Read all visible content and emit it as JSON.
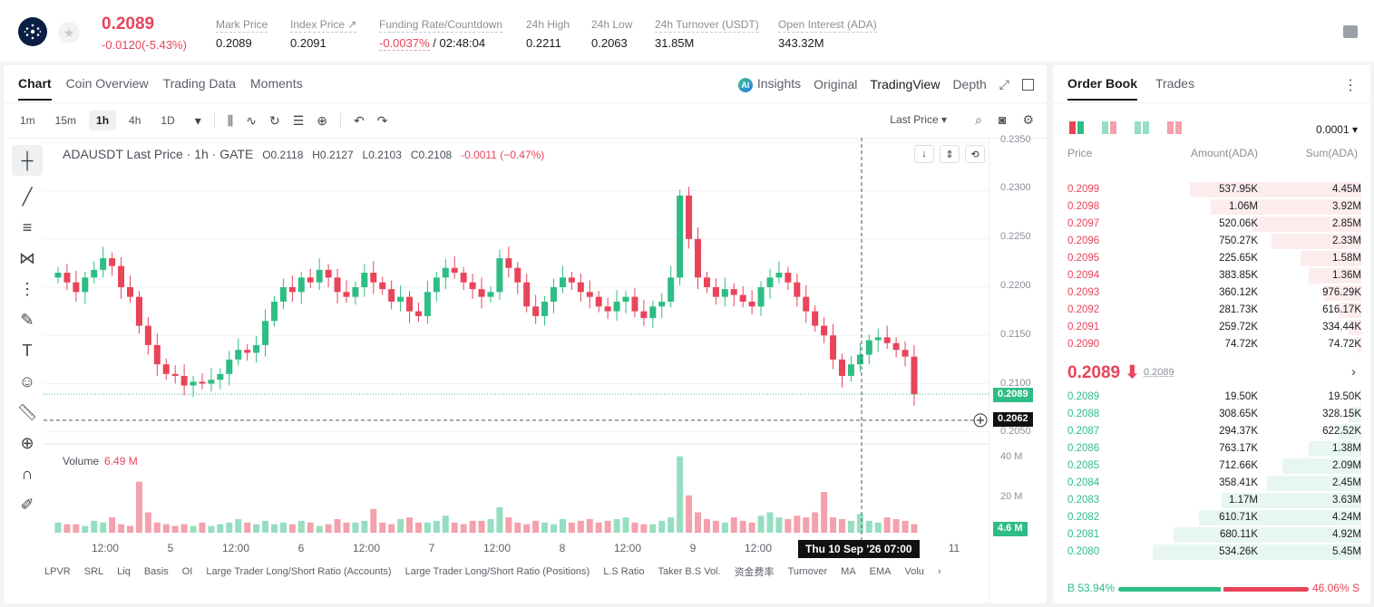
{
  "header": {
    "last_price": "0.2089",
    "change": "-0.0120(-5.43%)",
    "stats": [
      {
        "label": "Mark Price",
        "value": "0.2089"
      },
      {
        "label": "Index Price ↗",
        "value": "0.2091"
      },
      {
        "label": "Funding Rate/Countdown",
        "value_neg": "-0.0037%",
        "value": "/ 02:48:04"
      },
      {
        "label": "24h High",
        "value": "0.2211"
      },
      {
        "label": "24h Low",
        "value": "0.2063"
      },
      {
        "label": "24h Turnover (USDT)",
        "value": "31.85M"
      },
      {
        "label": "Open Interest (ADA)",
        "value": "343.32M"
      }
    ]
  },
  "chart_tabs": [
    "Chart",
    "Coin Overview",
    "Trading Data",
    "Moments"
  ],
  "view_opts": {
    "insights": "Insights",
    "original": "Original",
    "tradingview": "TradingView",
    "depth": "Depth",
    "ai": "AI"
  },
  "timeframes": [
    "1m",
    "15m",
    "1h",
    "4h",
    "1D"
  ],
  "last_price_sel": "Last Price ▾",
  "legend": {
    "title": "ADAUSDT Last Price · 1h · GATE",
    "o": "O0.2118",
    "h": "H0.2127",
    "l": "L0.2103",
    "c": "C0.2108",
    "chg": "-0.0011 (−0.47%)"
  },
  "volume": {
    "label": "Volume",
    "value": "6.49 M"
  },
  "price_axis": [
    "0.2350",
    "0.2300",
    "0.2250",
    "0.2200",
    "0.2150",
    "0.2100",
    "0.2050"
  ],
  "volume_axis": [
    "40 M",
    "20 M"
  ],
  "tags": {
    "last": "0.2089",
    "cross": "0.2062",
    "vol": "4.6 M"
  },
  "time_axis": [
    "12:00",
    "5",
    "12:00",
    "6",
    "12:00",
    "7",
    "12:00",
    "8",
    "12:00",
    "9",
    "12:00",
    "11"
  ],
  "crosshair_time": "Thu 10 Sep '26   07:00",
  "indicators": [
    "LPVR",
    "SRL",
    "Liq",
    "Basis",
    "OI",
    "Large Trader Long/Short Ratio (Accounts)",
    "Large Trader Long/Short Ratio (Positions)",
    "L.S Ratio",
    "Taker B.S Vol.",
    "资金费率",
    "Turnover",
    "MA",
    "EMA",
    "Volu"
  ],
  "chart_data": {
    "type": "candlestick",
    "title": "ADAUSDT Last Price · 1h · GATE",
    "ylim": [
      0.2045,
      0.2355
    ],
    "close_series": [
      0.2215,
      0.2205,
      0.2195,
      0.221,
      0.2218,
      0.223,
      0.2222,
      0.22,
      0.219,
      0.216,
      0.214,
      0.212,
      0.211,
      0.2108,
      0.2098,
      0.2102,
      0.21,
      0.2104,
      0.211,
      0.2125,
      0.2135,
      0.2132,
      0.214,
      0.2165,
      0.2185,
      0.22,
      0.2195,
      0.221,
      0.2205,
      0.2218,
      0.221,
      0.2195,
      0.219,
      0.22,
      0.2215,
      0.2205,
      0.2198,
      0.2185,
      0.219,
      0.2175,
      0.217,
      0.2195,
      0.221,
      0.222,
      0.2215,
      0.2205,
      0.2198,
      0.219,
      0.2195,
      0.223,
      0.222,
      0.2205,
      0.218,
      0.217,
      0.2185,
      0.22,
      0.221,
      0.2205,
      0.2195,
      0.219,
      0.218,
      0.2175,
      0.2185,
      0.219,
      0.2175,
      0.2168,
      0.218,
      0.2185,
      0.221,
      0.2295,
      0.225,
      0.221,
      0.22,
      0.219,
      0.2198,
      0.2192,
      0.2185,
      0.218,
      0.22,
      0.221,
      0.2215,
      0.2205,
      0.219,
      0.2175,
      0.216,
      0.215,
      0.2125,
      0.2108,
      0.212,
      0.213,
      0.2145,
      0.2148,
      0.2142,
      0.2135,
      0.2128,
      0.2089
    ],
    "volume_series": [
      6,
      5,
      5,
      4,
      7,
      6,
      9,
      5,
      4,
      30,
      12,
      6,
      5,
      4,
      5,
      4,
      6,
      4,
      5,
      6,
      8,
      6,
      5,
      7,
      5,
      6,
      5,
      7,
      6,
      4,
      5,
      8,
      6,
      6,
      7,
      14,
      6,
      5,
      8,
      9,
      6,
      6,
      7,
      10,
      6,
      5,
      7,
      7,
      8,
      15,
      9,
      6,
      5,
      7,
      6,
      5,
      8,
      6,
      7,
      8,
      6,
      7,
      8,
      9,
      6,
      5,
      5,
      7,
      9,
      45,
      22,
      12,
      8,
      7,
      6,
      9,
      7,
      6,
      10,
      12,
      9,
      8,
      10,
      9,
      12,
      24,
      9,
      8,
      7,
      11,
      7,
      6,
      9,
      8,
      7,
      5
    ]
  },
  "book": {
    "tabs": [
      "Order Book",
      "Trades"
    ],
    "precision": "0.0001 ▾",
    "headers": {
      "price": "Price",
      "amount": "Amount(ADA)",
      "sum": "Sum(ADA)"
    },
    "asks": [
      {
        "p": "0.2099",
        "a": "537.95K",
        "s": "4.45M",
        "depth": 0.82
      },
      {
        "p": "0.2098",
        "a": "1.06M",
        "s": "3.92M",
        "depth": 0.72
      },
      {
        "p": "0.2097",
        "a": "520.06K",
        "s": "2.85M",
        "depth": 0.52
      },
      {
        "p": "0.2096",
        "a": "750.27K",
        "s": "2.33M",
        "depth": 0.43
      },
      {
        "p": "0.2095",
        "a": "225.65K",
        "s": "1.58M",
        "depth": 0.29
      },
      {
        "p": "0.2094",
        "a": "383.85K",
        "s": "1.36M",
        "depth": 0.25
      },
      {
        "p": "0.2093",
        "a": "360.12K",
        "s": "976.29K",
        "depth": 0.18
      },
      {
        "p": "0.2092",
        "a": "281.73K",
        "s": "616.17K",
        "depth": 0.11
      },
      {
        "p": "0.2091",
        "a": "259.72K",
        "s": "334.44K",
        "depth": 0.06
      },
      {
        "p": "0.2090",
        "a": "74.72K",
        "s": "74.72K",
        "depth": 0.02
      }
    ],
    "mid_price": "0.2089 ⬇",
    "mid_mark": "0.2089",
    "bids": [
      {
        "p": "0.2089",
        "a": "19.50K",
        "s": "19.50K",
        "depth": 0.01
      },
      {
        "p": "0.2088",
        "a": "308.65K",
        "s": "328.15K",
        "depth": 0.06
      },
      {
        "p": "0.2087",
        "a": "294.37K",
        "s": "622.52K",
        "depth": 0.11
      },
      {
        "p": "0.2086",
        "a": "763.17K",
        "s": "1.38M",
        "depth": 0.25
      },
      {
        "p": "0.2085",
        "a": "712.66K",
        "s": "2.09M",
        "depth": 0.38
      },
      {
        "p": "0.2084",
        "a": "358.41K",
        "s": "2.45M",
        "depth": 0.45
      },
      {
        "p": "0.2083",
        "a": "1.17M",
        "s": "3.63M",
        "depth": 0.67
      },
      {
        "p": "0.2082",
        "a": "610.71K",
        "s": "4.24M",
        "depth": 0.78
      },
      {
        "p": "0.2081",
        "a": "680.11K",
        "s": "4.92M",
        "depth": 0.9
      },
      {
        "p": "0.2080",
        "a": "534.26K",
        "s": "5.45M",
        "depth": 1.0
      }
    ],
    "buy_ratio": "B 53.94%",
    "sell_ratio": "46.06% S",
    "buy_frac": 0.5394
  },
  "colors": {
    "up": "#2ebd85",
    "down": "#e8445a"
  }
}
